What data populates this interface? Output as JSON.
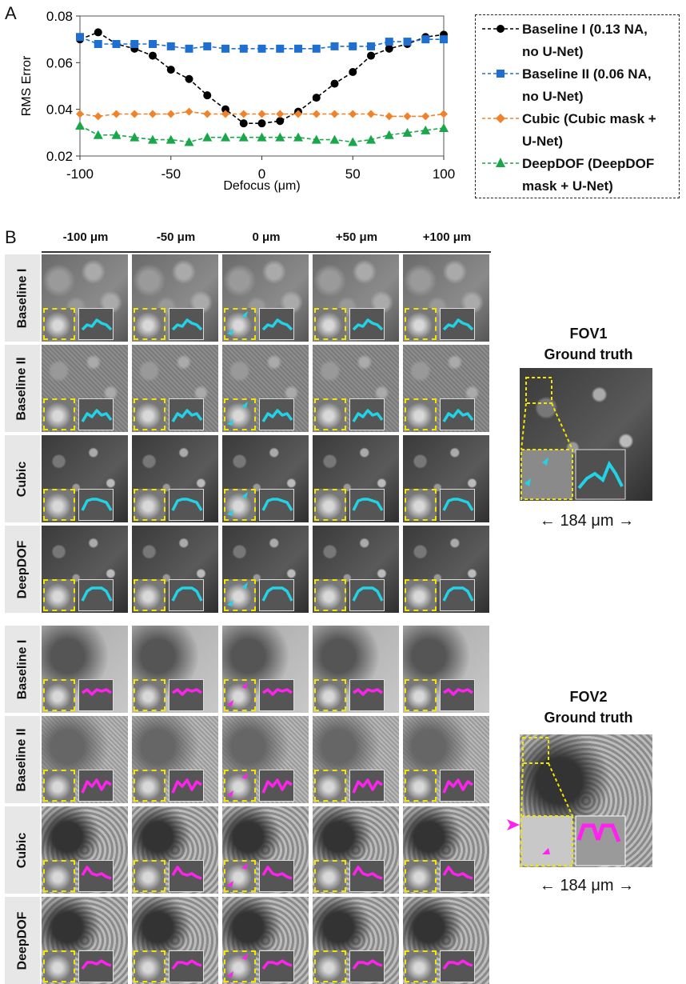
{
  "panelA": {
    "letter": "A"
  },
  "panelB": {
    "letter": "B"
  },
  "chart_data": {
    "type": "line",
    "xlabel": "Defocus (μm)",
    "ylabel": "RMS Error",
    "xlim": [
      -100,
      100
    ],
    "ylim": [
      0.02,
      0.08
    ],
    "xticks": [
      -100,
      -50,
      0,
      50,
      100
    ],
    "xtick_labels": [
      "-100",
      "-50",
      "0",
      "50",
      "100"
    ],
    "yticks": [
      0.02,
      0.04,
      0.06,
      0.08
    ],
    "ytick_labels": [
      "0.02",
      "0.04",
      "0.06",
      "0.08"
    ],
    "x": [
      -100,
      -90,
      -80,
      -70,
      -60,
      -50,
      -40,
      -30,
      -20,
      -10,
      0,
      10,
      20,
      30,
      40,
      50,
      60,
      70,
      80,
      90,
      100
    ],
    "series": [
      {
        "name": "Baseline I (0.13 NA, no U-Net)",
        "color": "#000000",
        "marker": "circle",
        "values": [
          0.07,
          0.073,
          0.068,
          0.066,
          0.063,
          0.057,
          0.053,
          0.046,
          0.04,
          0.034,
          0.034,
          0.035,
          0.039,
          0.045,
          0.051,
          0.056,
          0.063,
          0.066,
          0.068,
          0.071,
          0.072
        ]
      },
      {
        "name": "Baseline II (0.06 NA, no U-Net)",
        "color": "#1f6fd1",
        "marker": "square",
        "values": [
          0.071,
          0.068,
          0.068,
          0.068,
          0.068,
          0.067,
          0.066,
          0.067,
          0.066,
          0.066,
          0.066,
          0.066,
          0.066,
          0.066,
          0.067,
          0.067,
          0.067,
          0.069,
          0.069,
          0.07,
          0.07
        ]
      },
      {
        "name": "Cubic (Cubic mask + U-Net)",
        "color": "#f0822a",
        "marker": "diamond",
        "values": [
          0.038,
          0.037,
          0.038,
          0.038,
          0.038,
          0.038,
          0.039,
          0.038,
          0.038,
          0.038,
          0.038,
          0.038,
          0.038,
          0.038,
          0.038,
          0.038,
          0.038,
          0.037,
          0.037,
          0.037,
          0.038
        ]
      },
      {
        "name": "DeepDOF (DeepDOF mask + U-Net)",
        "color": "#1aa64b",
        "marker": "triangle",
        "values": [
          0.033,
          0.029,
          0.029,
          0.028,
          0.027,
          0.027,
          0.026,
          0.028,
          0.028,
          0.028,
          0.028,
          0.028,
          0.028,
          0.027,
          0.027,
          0.026,
          0.027,
          0.029,
          0.03,
          0.031,
          0.032
        ]
      }
    ],
    "legend": "right",
    "grid": false
  },
  "legend": [
    {
      "line1": "Baseline I (0.13 NA,",
      "line2": "no U-Net)"
    },
    {
      "line1": "Baseline II (0.06 NA,",
      "line2": "no U-Net)"
    },
    {
      "line1": "Cubic (Cubic mask +",
      "line2": "U-Net)"
    },
    {
      "line1": "DeepDOF (DeepDOF",
      "line2": "mask + U-Net)"
    }
  ],
  "columns": [
    "-100 μm",
    "-50 μm",
    "0 μm",
    "+50 μm",
    "+100 μm"
  ],
  "rows": [
    "Baseline I",
    "Baseline II",
    "Cubic",
    "DeepDOF"
  ],
  "fov1": {
    "title1": "FOV1",
    "title2": "Ground truth",
    "scale": "184 μm"
  },
  "fov2": {
    "title1": "FOV2",
    "title2": "Ground truth",
    "scale": "184 μm"
  },
  "colors": {
    "cyan": "#22d3e6",
    "magenta": "#ff22ee",
    "yellow": "#f2e600"
  }
}
